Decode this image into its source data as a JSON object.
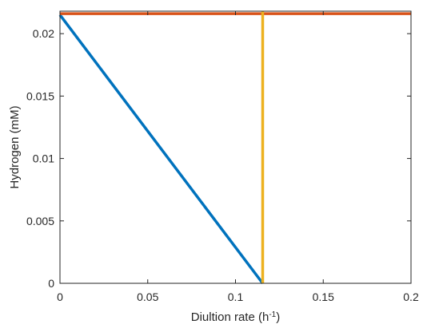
{
  "chart_data": {
    "type": "line",
    "title": "",
    "xlabel": "Diultion rate (h",
    "xlabel_sup": "-1",
    "xlabel_suffix": ")",
    "ylabel": "Hydrogen (mM)",
    "xlim": [
      0,
      0.2
    ],
    "ylim": [
      0,
      0.0218
    ],
    "grid": false,
    "xticks": [
      {
        "value": 0,
        "label": "0"
      },
      {
        "value": 0.05,
        "label": "0.05"
      },
      {
        "value": 0.1,
        "label": "0.1"
      },
      {
        "value": 0.15,
        "label": "0.15"
      },
      {
        "value": 0.2,
        "label": "0.2"
      }
    ],
    "yticks": [
      {
        "value": 0,
        "label": "0"
      },
      {
        "value": 0.005,
        "label": "0.005"
      },
      {
        "value": 0.01,
        "label": "0.01"
      },
      {
        "value": 0.015,
        "label": "0.015"
      },
      {
        "value": 0.02,
        "label": "0.02"
      }
    ],
    "series": [
      {
        "color": "#0072BD",
        "x": [
          0,
          0.1155
        ],
        "y": [
          0.0215,
          0
        ]
      },
      {
        "color": "#D95319",
        "x": [
          0,
          0.2
        ],
        "y": [
          0.0216,
          0.0216
        ]
      },
      {
        "color": "#EDB120",
        "x": [
          0.1155,
          0.1155
        ],
        "y": [
          0,
          0.0218
        ]
      }
    ]
  }
}
